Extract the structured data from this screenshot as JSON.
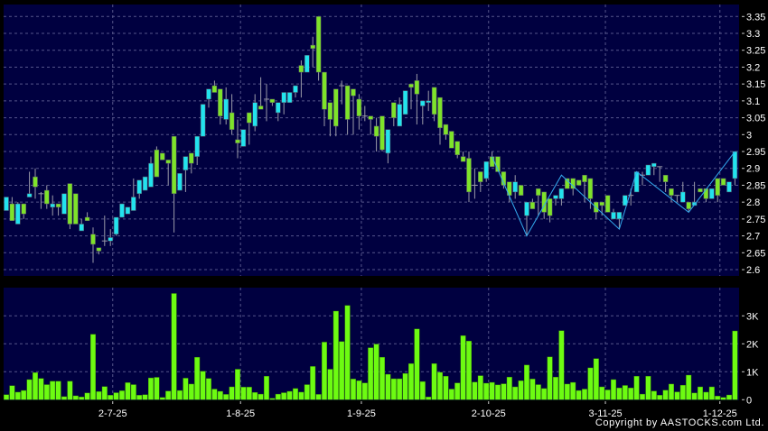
{
  "chart_data": [
    {
      "type": "candlestick",
      "title": "",
      "ylim": [
        2.58,
        3.37
      ],
      "yticks": [
        "3.35",
        "3.3",
        "3.25",
        "3.2",
        "3.15",
        "3.1",
        "3.05",
        "3",
        "2.95",
        "2.9",
        "2.85",
        "2.8",
        "2.75",
        "2.7",
        "2.65",
        "2.6"
      ],
      "grid": true,
      "axis_position": "right",
      "up_color": "#22e3ee",
      "down_color": "#7ee32a",
      "xticks": [
        {
          "label": "2-7-25",
          "index": 18.4
        },
        {
          "label": "1-8-25",
          "index": 40.5
        },
        {
          "label": "1-9-25",
          "index": 61.4
        },
        {
          "label": "2-10-25",
          "index": 83.4
        },
        {
          "label": "3-11-25",
          "index": 103.6
        },
        {
          "label": "1-12-25",
          "index": 123.4
        }
      ],
      "ohlc": [
        [
          2.775,
          2.815,
          2.775,
          2.815
        ],
        [
          2.795,
          2.815,
          2.745,
          2.745
        ],
        [
          2.735,
          2.8,
          2.735,
          2.795
        ],
        [
          2.795,
          2.795,
          2.75,
          2.765
        ],
        [
          2.815,
          2.89,
          2.815,
          2.825
        ],
        [
          2.875,
          2.9,
          2.81,
          2.845
        ],
        [
          2.825,
          2.83,
          2.78,
          2.825
        ],
        [
          2.835,
          2.85,
          2.78,
          2.795
        ],
        [
          2.785,
          2.82,
          2.76,
          2.795
        ],
        [
          2.795,
          2.795,
          2.76,
          2.785
        ],
        [
          2.765,
          2.825,
          2.765,
          2.825
        ],
        [
          2.855,
          2.855,
          2.72,
          2.735
        ],
        [
          2.825,
          2.825,
          2.735,
          2.735
        ],
        [
          2.715,
          2.75,
          2.715,
          2.735
        ],
        [
          2.755,
          2.77,
          2.745,
          2.745
        ],
        [
          2.705,
          2.725,
          2.62,
          2.675
        ],
        [
          2.665,
          2.665,
          2.645,
          2.655
        ],
        [
          2.685,
          2.76,
          2.67,
          2.685
        ],
        [
          2.685,
          2.72,
          2.67,
          2.695
        ],
        [
          2.705,
          2.755,
          2.7,
          2.755
        ],
        [
          2.755,
          2.795,
          2.755,
          2.795
        ],
        [
          2.765,
          2.785,
          2.765,
          2.785
        ],
        [
          2.775,
          2.87,
          2.775,
          2.815
        ],
        [
          2.825,
          2.865,
          2.81,
          2.865
        ],
        [
          2.835,
          2.875,
          2.835,
          2.875
        ],
        [
          2.845,
          2.935,
          2.845,
          2.915
        ],
        [
          2.955,
          2.965,
          2.875,
          2.875
        ],
        [
          2.945,
          2.945,
          2.925,
          2.925
        ],
        [
          2.925,
          2.925,
          2.85,
          2.915
        ],
        [
          2.995,
          2.995,
          2.71,
          2.825
        ],
        [
          2.835,
          2.885,
          2.835,
          2.885
        ],
        [
          2.895,
          2.935,
          2.83,
          2.935
        ],
        [
          2.945,
          2.945,
          2.885,
          2.915
        ],
        [
          2.935,
          2.995,
          2.91,
          2.995
        ],
        [
          2.995,
          3.09,
          2.995,
          3.09
        ],
        [
          3.105,
          3.135,
          3.08,
          3.135
        ],
        [
          3.145,
          3.16,
          3.125,
          3.125
        ],
        [
          3.135,
          3.135,
          3.03,
          3.055
        ],
        [
          3.045,
          3.14,
          3.03,
          3.105
        ],
        [
          3.065,
          3.12,
          3.0,
          3.015
        ],
        [
          2.985,
          3.045,
          2.93,
          2.975
        ],
        [
          2.965,
          3.015,
          2.965,
          3.015
        ],
        [
          3.065,
          3.065,
          2.97,
          3.035
        ],
        [
          3.025,
          3.12,
          3.01,
          3.095
        ],
        [
          3.085,
          3.17,
          3.075,
          3.075
        ],
        [
          3.105,
          3.15,
          3.04,
          3.105
        ],
        [
          3.105,
          3.105,
          3.085,
          3.095
        ],
        [
          3.065,
          3.095,
          3.04,
          3.095
        ],
        [
          3.095,
          3.125,
          3.06,
          3.125
        ],
        [
          3.095,
          3.125,
          3.095,
          3.125
        ],
        [
          3.125,
          3.145,
          3.11,
          3.145
        ],
        [
          3.205,
          3.22,
          3.11,
          3.185
        ],
        [
          3.185,
          3.235,
          3.185,
          3.235
        ],
        [
          3.265,
          3.29,
          3.2,
          3.255
        ],
        [
          3.35,
          3.35,
          3.16,
          3.185
        ],
        [
          3.185,
          3.185,
          3.025,
          3.075
        ],
        [
          3.095,
          3.095,
          2.995,
          3.045
        ],
        [
          3.135,
          3.135,
          2.995,
          3.025
        ],
        [
          3.145,
          3.16,
          3.09,
          3.145
        ],
        [
          3.145,
          3.145,
          3.0,
          3.045
        ],
        [
          3.135,
          3.135,
          3.0,
          3.115
        ],
        [
          3.105,
          3.12,
          3.015,
          3.055
        ],
        [
          3.055,
          3.085,
          3.04,
          3.055
        ],
        [
          3.055,
          3.055,
          3.0,
          3.045
        ],
        [
          3.025,
          3.05,
          2.95,
          2.995
        ],
        [
          3.055,
          3.055,
          2.95,
          2.955
        ],
        [
          2.945,
          3.015,
          2.915,
          3.015
        ],
        [
          3.095,
          3.095,
          3.025,
          3.05
        ],
        [
          3.025,
          3.11,
          3.025,
          3.09
        ],
        [
          3.06,
          3.13,
          3.06,
          3.13
        ],
        [
          3.15,
          3.15,
          3.075,
          3.14
        ],
        [
          3.16,
          3.18,
          3.03,
          3.12
        ],
        [
          3.085,
          3.1,
          3.03,
          3.1
        ],
        [
          3.095,
          3.13,
          3.07,
          3.1
        ],
        [
          3.14,
          3.14,
          3.04,
          3.06
        ],
        [
          3.11,
          3.11,
          2.97,
          3.02
        ],
        [
          3.03,
          3.03,
          2.985,
          3.0
        ],
        [
          3.01,
          3.01,
          2.96,
          2.96
        ],
        [
          2.98,
          2.98,
          2.93,
          2.94
        ],
        [
          2.935,
          2.95,
          2.92,
          2.92
        ],
        [
          2.93,
          2.95,
          2.8,
          2.83
        ],
        [
          2.85,
          2.9,
          2.81,
          2.85
        ],
        [
          2.89,
          2.89,
          2.83,
          2.86
        ],
        [
          2.87,
          2.92,
          2.86,
          2.92
        ],
        [
          2.935,
          2.95,
          2.905,
          2.905
        ],
        [
          2.935,
          2.935,
          2.89,
          2.89
        ],
        [
          2.89,
          2.89,
          2.84,
          2.85
        ],
        [
          2.86,
          2.86,
          2.8,
          2.82
        ],
        [
          2.83,
          2.88,
          2.81,
          2.86
        ],
        [
          2.85,
          2.85,
          2.82,
          2.82
        ],
        [
          2.76,
          2.8,
          2.7,
          2.8
        ],
        [
          2.8,
          2.81,
          2.78,
          2.78
        ],
        [
          2.84,
          2.84,
          2.76,
          2.82
        ],
        [
          2.83,
          2.83,
          2.75,
          2.77
        ],
        [
          2.81,
          2.81,
          2.74,
          2.76
        ],
        [
          2.81,
          2.82,
          2.79,
          2.82
        ],
        [
          2.81,
          2.84,
          2.79,
          2.84
        ],
        [
          2.87,
          2.87,
          2.84,
          2.84
        ],
        [
          2.87,
          2.87,
          2.82,
          2.84
        ],
        [
          2.865,
          2.865,
          2.85,
          2.85
        ],
        [
          2.88,
          2.88,
          2.8,
          2.86
        ],
        [
          2.87,
          2.87,
          2.78,
          2.81
        ],
        [
          2.8,
          2.8,
          2.75,
          2.77
        ],
        [
          2.8,
          2.8,
          2.76,
          2.79
        ],
        [
          2.82,
          2.82,
          2.77,
          2.77
        ],
        [
          2.75,
          2.78,
          2.75,
          2.77
        ],
        [
          2.75,
          2.77,
          2.72,
          2.77
        ],
        [
          2.79,
          2.82,
          2.79,
          2.82
        ],
        [
          2.82,
          2.84,
          2.79,
          2.82
        ],
        [
          2.83,
          2.89,
          2.83,
          2.89
        ],
        [
          2.88,
          2.89,
          2.85,
          2.88
        ],
        [
          2.88,
          2.91,
          2.88,
          2.91
        ],
        [
          2.905,
          2.915,
          2.88,
          2.915
        ],
        [
          2.905,
          2.905,
          2.86,
          2.905
        ],
        [
          2.88,
          2.88,
          2.83,
          2.86
        ],
        [
          2.84,
          2.84,
          2.8,
          2.82
        ],
        [
          2.82,
          2.82,
          2.8,
          2.82
        ],
        [
          2.8,
          2.86,
          2.8,
          2.83
        ],
        [
          2.8,
          2.8,
          2.77,
          2.78
        ],
        [
          2.79,
          2.86,
          2.79,
          2.8
        ],
        [
          2.84,
          2.84,
          2.83,
          2.83
        ],
        [
          2.84,
          2.84,
          2.8,
          2.81
        ],
        [
          2.81,
          2.84,
          2.81,
          2.84
        ],
        [
          2.87,
          2.87,
          2.8,
          2.82
        ],
        [
          2.87,
          2.87,
          2.85,
          2.85
        ],
        [
          2.83,
          2.86,
          2.83,
          2.86
        ],
        [
          2.87,
          2.95,
          2.85,
          2.95
        ]
      ],
      "overlay_line": {
        "color": "#33aaee",
        "points": [
          [
            84,
            2.935
          ],
          [
            90,
            2.7
          ],
          [
            96,
            2.88
          ],
          [
            106,
            2.72
          ],
          [
            109,
            2.89
          ],
          [
            118,
            2.77
          ],
          [
            126,
            2.95
          ]
        ]
      }
    },
    {
      "type": "bar",
      "title": "",
      "ylim": [
        0,
        3.9
      ],
      "yticks": [
        "3K",
        "2K",
        "1K",
        "0"
      ],
      "grid": true,
      "bar_color": "#6dfb12",
      "unit": "K",
      "values": [
        0.18,
        0.5,
        0.27,
        0.33,
        0.72,
        0.97,
        0.76,
        0.54,
        0.66,
        0.66,
        0.11,
        0.66,
        0.14,
        0.1,
        0.24,
        2.34,
        0.29,
        0.47,
        0.16,
        0.25,
        0.32,
        0.61,
        0.54,
        0.16,
        0.18,
        0.78,
        0.8,
        0.08,
        0.31,
        3.8,
        0.33,
        0.77,
        0.56,
        1.52,
        1.02,
        0.76,
        0.38,
        0.3,
        0.19,
        0.46,
        1.09,
        0.45,
        0.45,
        0.26,
        0.2,
        0.84,
        0.05,
        0.2,
        0.25,
        0.3,
        0.4,
        0.27,
        0.54,
        1.19,
        0.19,
        2.06,
        1.09,
        3.17,
        2.08,
        3.37,
        0.74,
        0.68,
        0.6,
        1.86,
        1.99,
        1.52,
        0.91,
        0.75,
        0.75,
        0.94,
        1.29,
        2.53,
        0.65,
        0.1,
        1.29,
        0.98,
        0.84,
        0.38,
        0.6,
        2.29,
        2.1,
        0.63,
        0.86,
        0.59,
        0.62,
        0.53,
        0.57,
        0.81,
        0.46,
        0.68,
        1.24,
        0.74,
        0.54,
        0.4,
        1.53,
        0.81,
        2.47,
        0.56,
        0.62,
        0.33,
        0.38,
        1.14,
        1.47,
        0.46,
        0.35,
        0.72,
        0.42,
        0.51,
        0.42,
        0.84,
        0.2,
        0.84,
        0.31,
        0.16,
        0.34,
        0.56,
        0.28,
        0.52,
        0.88,
        0.24,
        0.46,
        0.27,
        0.46,
        0.13,
        0.08,
        0.17,
        2.46
      ]
    }
  ],
  "colors": {
    "panel_bg": "#000040",
    "grid": "#55558a",
    "text": "#ffffff"
  },
  "footer": {
    "copyright": "Copyright by AASTOCKS.com Ltd."
  }
}
